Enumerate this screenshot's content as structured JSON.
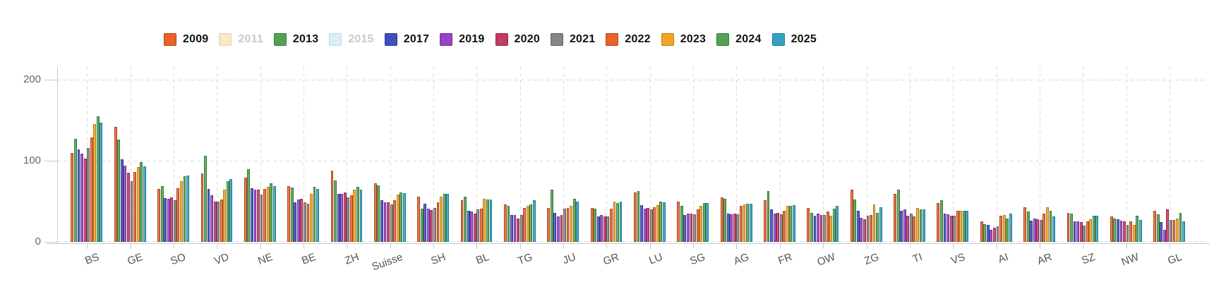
{
  "yaxis": {
    "tick_200": "200",
    "tick_100": "100",
    "tick_0": "0"
  },
  "chart_data": {
    "type": "bar",
    "title": "",
    "xlabel": "",
    "ylabel": "",
    "ylim": [
      0,
      200
    ],
    "yticks": [
      0,
      100,
      200
    ],
    "grid": "dashed",
    "legend_position": "top",
    "categories": [
      "BS",
      "GE",
      "SO",
      "VD",
      "NE",
      "BE",
      "ZH",
      "Suisse",
      "SH",
      "BL",
      "TG",
      "JU",
      "GR",
      "LU",
      "SG",
      "AG",
      "FR",
      "OW",
      "ZG",
      "TI",
      "VS",
      "AI",
      "AR",
      "SZ",
      "NW",
      "GL"
    ],
    "series": [
      {
        "name": "2009",
        "visible": true,
        "color": "#e8622c",
        "border": "#b04520",
        "values": [
          110,
          142,
          65,
          84,
          79,
          69,
          88,
          72,
          56,
          51,
          46,
          42,
          42,
          61,
          50,
          55,
          51,
          42,
          64,
          59,
          48,
          25,
          43,
          36,
          31,
          38
        ]
      },
      {
        "name": "2011",
        "visible": false,
        "color": "#fbe8c9",
        "border": "#e4d0ab",
        "values": []
      },
      {
        "name": "2013",
        "visible": true,
        "color": "#53a254",
        "border": "#377a38",
        "values": [
          127,
          126,
          69,
          106,
          90,
          67,
          76,
          70,
          41,
          56,
          44,
          64,
          41,
          63,
          44,
          53,
          63,
          36,
          52,
          64,
          51,
          22,
          37,
          35,
          29,
          34
        ]
      },
      {
        "name": "2015",
        "visible": false,
        "color": "#daeef5",
        "border": "#b9d8e3",
        "values": []
      },
      {
        "name": "2017",
        "visible": true,
        "color": "#3f50bd",
        "border": "#2c3a94",
        "values": [
          114,
          102,
          54,
          65,
          66,
          49,
          59,
          51,
          47,
          38,
          33,
          36,
          31,
          45,
          33,
          35,
          40,
          32,
          38,
          38,
          35,
          21,
          26,
          25,
          28,
          24
        ]
      },
      {
        "name": "2019",
        "visible": true,
        "color": "#9742c9",
        "border": "#722f9c",
        "values": [
          109,
          94,
          53,
          57,
          64,
          52,
          59,
          49,
          41,
          37,
          33,
          31,
          33,
          41,
          35,
          34,
          35,
          35,
          30,
          40,
          34,
          15,
          29,
          25,
          26,
          15
        ]
      },
      {
        "name": "2020",
        "visible": true,
        "color": "#c23b63",
        "border": "#942848",
        "values": [
          103,
          85,
          55,
          50,
          64,
          53,
          61,
          49,
          39,
          35,
          29,
          33,
          31,
          42,
          35,
          35,
          36,
          33,
          28,
          32,
          32,
          17,
          28,
          24,
          25,
          40
        ]
      },
      {
        "name": "2021",
        "visible": true,
        "color": "#868686",
        "border": "#5e5e5e",
        "values": [
          116,
          75,
          51,
          50,
          58,
          49,
          55,
          46,
          42,
          40,
          33,
          41,
          31,
          40,
          34,
          34,
          34,
          33,
          32,
          35,
          32,
          19,
          27,
          20,
          21,
          27
        ]
      },
      {
        "name": "2022",
        "visible": true,
        "color": "#e8622c",
        "border": "#b04520",
        "values": [
          129,
          86,
          66,
          52,
          65,
          47,
          57,
          51,
          49,
          41,
          42,
          42,
          41,
          43,
          40,
          44,
          38,
          37,
          33,
          31,
          38,
          32,
          35,
          25,
          25,
          27
        ]
      },
      {
        "name": "2023",
        "visible": true,
        "color": "#f3a427",
        "border": "#bf7c14",
        "values": [
          145,
          92,
          75,
          64,
          68,
          59,
          64,
          58,
          56,
          53,
          44,
          44,
          50,
          45,
          44,
          46,
          44,
          32,
          46,
          42,
          38,
          33,
          43,
          28,
          21,
          29
        ]
      },
      {
        "name": "2024",
        "visible": true,
        "color": "#53a254",
        "border": "#377a38",
        "values": [
          155,
          98,
          81,
          75,
          72,
          68,
          68,
          61,
          59,
          52,
          46,
          53,
          48,
          50,
          48,
          47,
          44,
          41,
          36,
          40,
          38,
          29,
          38,
          32,
          32,
          36
        ]
      },
      {
        "name": "2025",
        "visible": true,
        "color": "#36a0c1",
        "border": "#237d99",
        "values": [
          147,
          93,
          82,
          77,
          69,
          65,
          64,
          60,
          59,
          52,
          51,
          50,
          50,
          49,
          48,
          47,
          45,
          44,
          43,
          40,
          38,
          35,
          31,
          32,
          27,
          25
        ]
      }
    ]
  }
}
